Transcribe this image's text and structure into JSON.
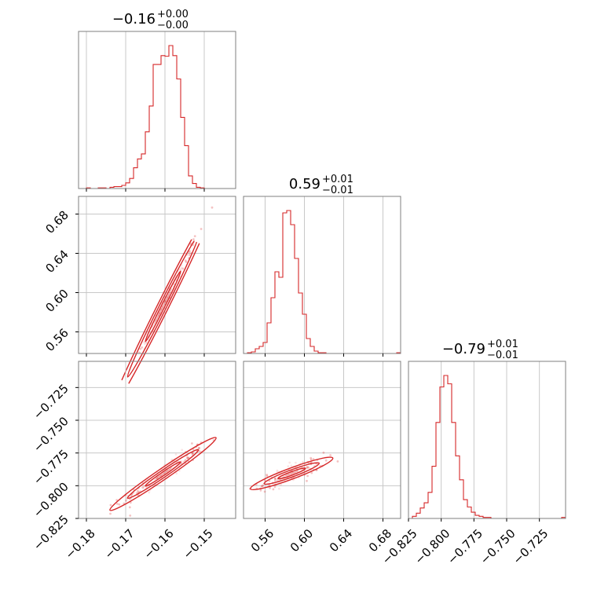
{
  "chart_data": {
    "type": "corner",
    "parameters": [
      {
        "range": [
          -0.182,
          -0.142
        ],
        "ticks": [
          -0.18,
          -0.17,
          -0.16,
          -0.15
        ],
        "tick_labels": [
          "−0.18",
          "−0.17",
          "−0.16",
          "−0.15"
        ]
      },
      {
        "range": [
          0.538,
          0.698
        ],
        "ticks": [
          0.56,
          0.6,
          0.64,
          0.68
        ],
        "tick_labels": [
          "0.56",
          "0.60",
          "0.64",
          "0.68"
        ]
      },
      {
        "range": [
          -0.825,
          -0.705
        ],
        "ticks": [
          -0.825,
          -0.8,
          -0.775,
          -0.75,
          -0.725
        ],
        "tick_labels": [
          "−0.825",
          "−0.800",
          "−0.775",
          "−0.750",
          "−0.725"
        ]
      }
    ],
    "titles": [
      {
        "value": "−0.16",
        "plus": "+0.00",
        "minus": "−0.00"
      },
      {
        "value": "0.59",
        "plus": "+0.01",
        "minus": "−0.01"
      },
      {
        "value": "−0.79",
        "plus": "+0.01",
        "minus": "−0.01"
      }
    ],
    "histograms": [
      {
        "edges_start": -0.182,
        "edges_step": 0.001,
        "counts": [
          0,
          0,
          1,
          0,
          0,
          1,
          1,
          0,
          2,
          3,
          3,
          5,
          9,
          16,
          33,
          47,
          55,
          90,
          131,
          197,
          197,
          211,
          210,
          227,
          211,
          174,
          113,
          68,
          20,
          8,
          2,
          1,
          0,
          0,
          0,
          0,
          0,
          0,
          0,
          0
        ]
      },
      {
        "edges_start": 0.538,
        "edges_step": 0.004,
        "counts": [
          0,
          1,
          2,
          6,
          9,
          14,
          39,
          71,
          104,
          97,
          179,
          182,
          164,
          121,
          77,
          50,
          19,
          9,
          3,
          1,
          1,
          0,
          0,
          0,
          0,
          0,
          0,
          0,
          0,
          0,
          0,
          0,
          0,
          0,
          0,
          0,
          0,
          0,
          0,
          1
        ]
      },
      {
        "edges_start": -0.825,
        "edges_step": 0.003,
        "counts": [
          0,
          2,
          5,
          10,
          15,
          25,
          50,
          92,
          126,
          137,
          129,
          92,
          60,
          37,
          18,
          11,
          6,
          3,
          2,
          1,
          1,
          0,
          0,
          0,
          0,
          0,
          0,
          0,
          0,
          0,
          0,
          0,
          0,
          0,
          0,
          0,
          0,
          0,
          0,
          1
        ]
      }
    ],
    "correlations": {
      "x1_x0": {
        "slope": 8.0,
        "intercept": 1.87
      },
      "x2_x0": {
        "slope": 2.05,
        "intercept": -0.462
      },
      "x2_x1": {
        "slope": 0.28,
        "intercept": -0.955
      }
    },
    "color": "#d62728",
    "grid": true
  }
}
